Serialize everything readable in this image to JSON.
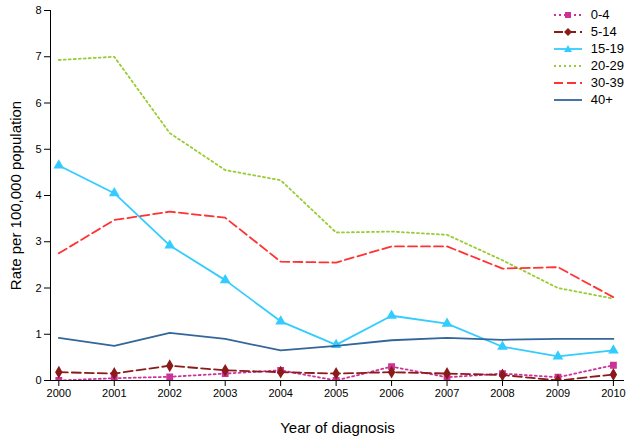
{
  "chart_data": {
    "type": "line",
    "x_label": "Year of diagnosis",
    "y_label": "Rate per 100,000 population",
    "x": [
      2000,
      2001,
      2002,
      2003,
      2004,
      2005,
      2006,
      2007,
      2008,
      2009,
      2010
    ],
    "xlim": [
      1999.85,
      2010.2
    ],
    "xticks": [
      2000,
      2001,
      2002,
      2003,
      2004,
      2005,
      2006,
      2007,
      2008,
      2009,
      2010
    ],
    "ylim": [
      0,
      8
    ],
    "yticks": [
      0,
      1,
      2,
      3,
      4,
      5,
      6,
      7,
      8
    ],
    "grid": false,
    "legend": "top-right",
    "series": [
      {
        "name": "0-4",
        "color": "#cc3399",
        "marker": "square",
        "line_style": "dotted",
        "values": [
          0.0,
          0.05,
          0.08,
          0.15,
          0.22,
          0.0,
          0.3,
          0.07,
          0.15,
          0.07,
          0.33
        ]
      },
      {
        "name": "5-14",
        "color": "#8b1a1a",
        "marker": "diamond",
        "line_style": "dashed",
        "values": [
          0.18,
          0.15,
          0.32,
          0.22,
          0.18,
          0.15,
          0.18,
          0.15,
          0.12,
          0.0,
          0.13
        ]
      },
      {
        "name": "15-19",
        "color": "#33ccff",
        "marker": "triangle",
        "line_style": "solid",
        "values": [
          4.65,
          4.05,
          2.92,
          2.17,
          1.28,
          0.77,
          1.4,
          1.23,
          0.73,
          0.52,
          0.65
        ]
      },
      {
        "name": "20-29",
        "color": "#99cc33",
        "marker": "none",
        "line_style": "dotted",
        "values": [
          6.93,
          7.0,
          5.35,
          4.55,
          4.33,
          3.2,
          3.22,
          3.15,
          2.6,
          2.0,
          1.77
        ]
      },
      {
        "name": "30-39",
        "color": "#ff3333",
        "marker": "none",
        "line_style": "dashed",
        "values": [
          2.75,
          3.47,
          3.65,
          3.52,
          2.57,
          2.55,
          2.9,
          2.9,
          2.42,
          2.45,
          1.8
        ]
      },
      {
        "name": "40+",
        "color": "#336699",
        "marker": "none",
        "line_style": "solid",
        "values": [
          0.92,
          0.75,
          1.03,
          0.9,
          0.65,
          0.75,
          0.87,
          0.92,
          0.88,
          0.9,
          0.9
        ]
      }
    ]
  }
}
